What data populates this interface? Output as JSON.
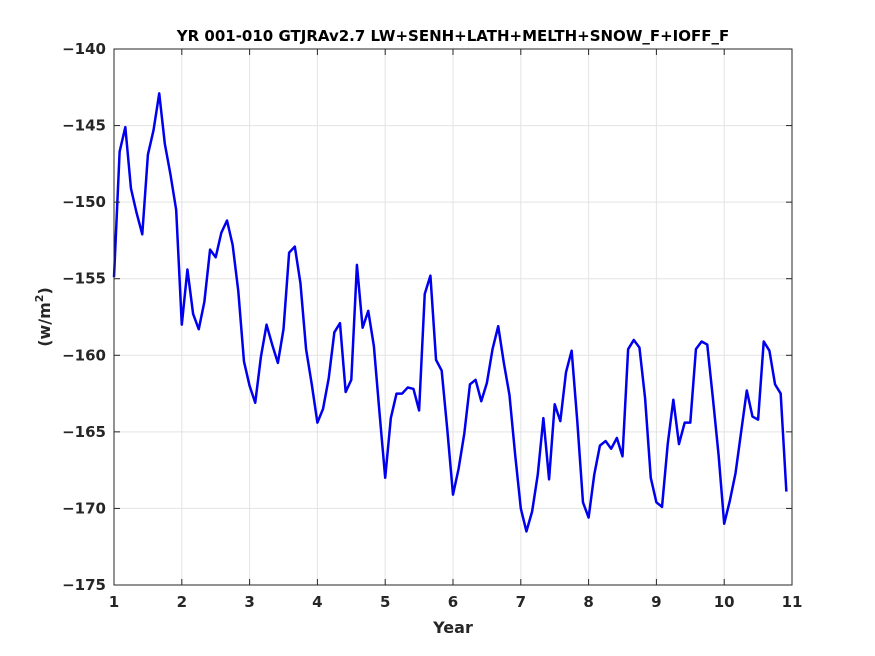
{
  "chart_data": {
    "type": "line",
    "title": "YR 001-010 GTJRAv2.7 LW+SENH+LATH+MELTH+SNOW_F+IOFF_F",
    "xlabel": "Year",
    "ylabel": "(w/m",
    "ylabel_superscript": "2",
    "ylabel_close": ")",
    "xlim": [
      1,
      11
    ],
    "ylim": [
      -175,
      -140
    ],
    "xticks": [
      1,
      2,
      3,
      4,
      5,
      6,
      7,
      8,
      9,
      10,
      11
    ],
    "yticks": [
      -140,
      -145,
      -150,
      -155,
      -160,
      -165,
      -170,
      -175
    ],
    "grid": true,
    "line_color": "#0000ee",
    "series": [
      {
        "x": [
          1.0,
          1.083,
          1.167,
          1.25,
          1.333,
          1.417,
          1.5,
          1.583,
          1.667,
          1.75,
          1.833,
          1.917,
          2.0,
          2.083,
          2.167,
          2.25,
          2.333,
          2.417,
          2.5,
          2.583,
          2.667,
          2.75,
          2.833,
          2.917,
          3.0,
          3.083,
          3.167,
          3.25,
          3.333,
          3.417,
          3.5,
          3.583,
          3.667,
          3.75,
          3.833,
          3.917,
          4.0,
          4.083,
          4.167,
          4.25,
          4.333,
          4.417,
          4.5,
          4.583,
          4.667,
          4.75,
          4.833,
          4.917,
          5.0,
          5.083,
          5.167,
          5.25,
          5.333,
          5.417,
          5.5,
          5.583,
          5.667,
          5.75,
          5.833,
          5.917,
          6.0,
          6.083,
          6.167,
          6.25,
          6.333,
          6.417,
          6.5,
          6.583,
          6.667,
          6.75,
          6.833,
          6.917,
          7.0,
          7.083,
          7.167,
          7.25,
          7.333,
          7.417,
          7.5,
          7.583,
          7.667,
          7.75,
          7.833,
          7.917,
          8.0,
          8.083,
          8.167,
          8.25,
          8.333,
          8.417,
          8.5,
          8.583,
          8.667,
          8.75,
          8.833,
          8.917,
          9.0,
          9.083,
          9.167,
          9.25,
          9.333,
          9.417,
          9.5,
          9.583,
          9.667,
          9.75,
          9.833,
          9.917,
          10.0,
          10.083,
          10.167,
          10.25,
          10.333,
          10.417,
          10.5,
          10.583,
          10.667,
          10.75,
          10.833,
          10.917
        ],
        "y": [
          -154.9,
          -146.7,
          -145.1,
          -149.1,
          -150.7,
          -152.1,
          -146.9,
          -145.3,
          -142.9,
          -146.2,
          -148.2,
          -150.5,
          -158.0,
          -154.4,
          -157.3,
          -158.3,
          -156.5,
          -153.1,
          -153.6,
          -152.0,
          -151.2,
          -152.8,
          -155.8,
          -160.4,
          -162.0,
          -163.1,
          -160.1,
          -158.0,
          -159.3,
          -160.5,
          -158.3,
          -153.3,
          -152.9,
          -155.3,
          -159.6,
          -161.9,
          -164.4,
          -163.5,
          -161.5,
          -158.5,
          -157.9,
          -162.4,
          -161.6,
          -154.1,
          -158.2,
          -157.1,
          -159.4,
          -163.8,
          -168.0,
          -164.1,
          -162.5,
          -162.5,
          -162.1,
          -162.2,
          -163.6,
          -156.0,
          -154.8,
          -160.3,
          -161.0,
          -164.9,
          -169.1,
          -167.4,
          -165.1,
          -161.9,
          -161.6,
          -163.0,
          -161.8,
          -159.6,
          -158.1,
          -160.5,
          -162.6,
          -166.5,
          -170.0,
          -171.5,
          -170.2,
          -167.8,
          -164.1,
          -168.1,
          -163.2,
          -164.3,
          -161.1,
          -159.7,
          -164.3,
          -169.6,
          -170.6,
          -167.8,
          -165.9,
          -165.6,
          -166.1,
          -165.4,
          -166.6,
          -159.6,
          -159.0,
          -159.5,
          -162.8,
          -168.0,
          -169.6,
          -169.9,
          -165.8,
          -162.9,
          -165.8,
          -164.4,
          -164.4,
          -159.6,
          -159.1,
          -159.3,
          -162.8,
          -166.5,
          -171.0,
          -169.5,
          -167.7,
          -165.0,
          -162.3,
          -164.0,
          -164.2,
          -159.1,
          -159.7,
          -161.9,
          -162.5,
          -168.9
        ]
      }
    ]
  }
}
